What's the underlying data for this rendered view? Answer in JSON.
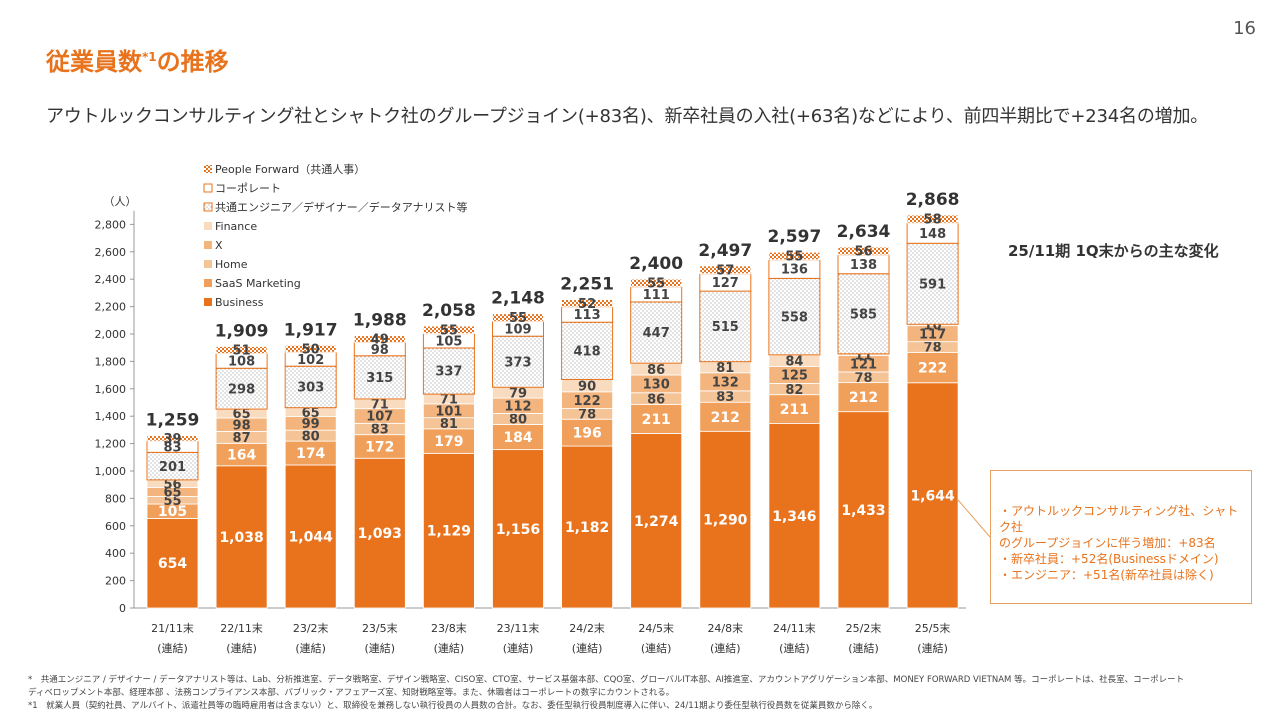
{
  "page_number": "16",
  "title": "従業員数",
  "title_sup": "*1",
  "title_suffix": "の推移",
  "subtitle": "アウトルックコンサルティング社とシャトク社のグループジョイン(+83名)、新卒社員の入社(+63名)などにより、前四半期比で+234名の増加。",
  "side_heading": "25/11期 1Q末からの主な変化",
  "callout": [
    "・アウトルックコンサルティング社、シャトク社",
    "のグループジョインに伴う増加：+83名",
    "・新卒社員：+52名(Businessドメイン)",
    "・エンジニア：+51名(新卒社員は除く)"
  ],
  "footnotes": [
    "*　共通エンジニア / デザイナー / データアナリスト等は、Lab、分析推進室、データ戦略室、デザイン戦略室、CISO室、CTO室、サービス基盤本部、CQO室、グローバルIT本部、AI推進室、アカウントアグリゲーション本部、MONEY FORWARD VIETNAM 等。コーポレートは、社長室、コーポレート",
    "ディベロップメント本部、経理本部 、法務コンプライアンス本部、パブリック・アフェアーズ室、知財戦略室等。また、休職者はコーポレートの数字にカウントされる。",
    "*1　就業人員（契約社員、アルバイト、派遣社員等の臨時雇用者は含まない）と、取締役を兼務しない執行役員の人員数の合計。なお、委任型執行役員制度導入に伴い、24/11期より委任型執行役員数を従業員数から除く。"
  ],
  "chart_data": {
    "type": "bar",
    "stacked": true,
    "ylabel": "（人）",
    "ylim": [
      0,
      2900
    ],
    "yticks": [
      0,
      200,
      400,
      600,
      800,
      1000,
      1200,
      1400,
      1600,
      1800,
      2000,
      2200,
      2400,
      2600,
      2800
    ],
    "grid": false,
    "legend_position": "top-left",
    "categories": [
      "21/11末",
      "22/11末",
      "23/2末",
      "23/5末",
      "23/8末",
      "23/11末",
      "24/2末",
      "24/5末",
      "24/8末",
      "24/11末",
      "25/2末",
      "25/5末"
    ],
    "category_sublabel": "(連結)",
    "totals": [
      1259,
      1909,
      1917,
      1988,
      2058,
      2148,
      2251,
      2400,
      2497,
      2597,
      2634,
      2868
    ],
    "series": [
      {
        "name": "Business",
        "color": "#e8731c",
        "pattern": "solid",
        "values": [
          654,
          1038,
          1044,
          1093,
          1129,
          1156,
          1182,
          1274,
          1290,
          1346,
          1433,
          1644
        ]
      },
      {
        "name": "SaaS Marketing",
        "color": "#f0a05a",
        "pattern": "solid",
        "values": [
          105,
          164,
          174,
          172,
          179,
          184,
          196,
          211,
          212,
          211,
          212,
          222
        ]
      },
      {
        "name": "Home",
        "color": "#f5c496",
        "pattern": "solid",
        "values": [
          55,
          87,
          80,
          83,
          81,
          80,
          78,
          86,
          83,
          82,
          78,
          78
        ]
      },
      {
        "name": "X",
        "color": "#f3b57d",
        "pattern": "solid",
        "values": [
          65,
          98,
          99,
          107,
          101,
          112,
          122,
          130,
          132,
          125,
          121,
          117
        ]
      },
      {
        "name": "Finance",
        "color": "#f9dcc0",
        "pattern": "solid",
        "values": [
          56,
          65,
          65,
          71,
          71,
          79,
          90,
          86,
          81,
          84,
          11,
          10
        ]
      },
      {
        "name": "共通エンジニア／デザイナー／データアナリスト等",
        "color": "#ffffff",
        "pattern": "dots",
        "values": [
          201,
          298,
          303,
          315,
          337,
          373,
          418,
          447,
          515,
          558,
          585,
          591
        ]
      },
      {
        "name": "コーポレート",
        "color": "#ffffff",
        "pattern": "plain",
        "values": [
          83,
          108,
          102,
          98,
          105,
          109,
          113,
          111,
          127,
          136,
          138,
          148
        ]
      },
      {
        "name": "People Forward（共通人事）",
        "color": "#e8731c",
        "pattern": "checker",
        "values": [
          39,
          51,
          50,
          49,
          55,
          55,
          52,
          55,
          57,
          55,
          56,
          58
        ]
      }
    ]
  }
}
